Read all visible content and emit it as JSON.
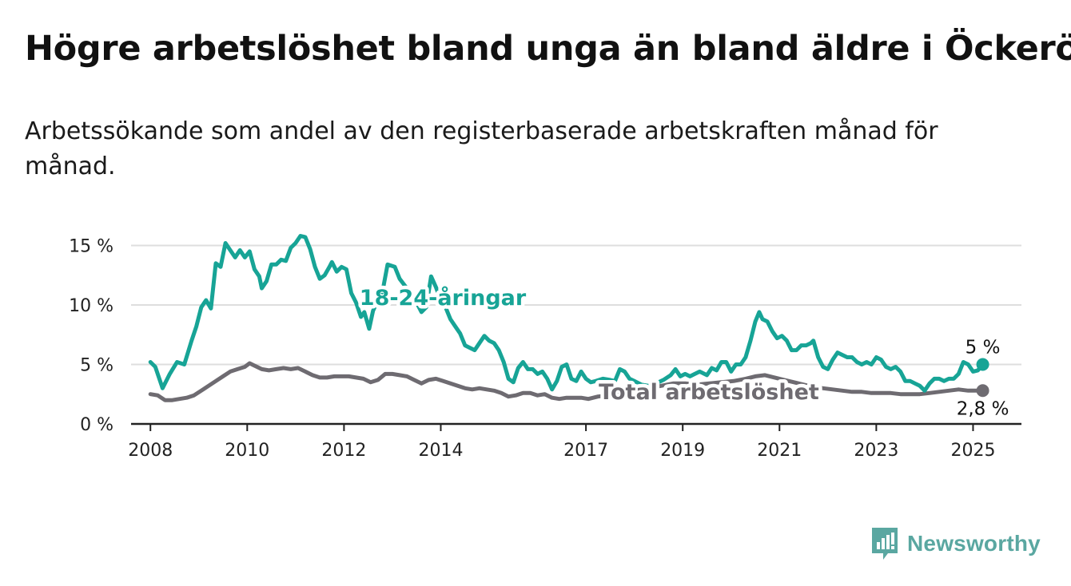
{
  "title": "Högre arbetslöshet bland unga än bland äldre i Öckerö",
  "subtitle": "Arbetssökande som andel av den registerbaserade arbetskraften månad för månad.",
  "brand": {
    "name": "Newsworthy",
    "icon": "newsworthy-logo-icon"
  },
  "colors": {
    "youth": "#17a496",
    "total": "#6e6b71",
    "grid": "#dedede",
    "axis": "#222222",
    "brand": "#5aa7a1"
  },
  "chart_data": {
    "type": "line",
    "xlim": [
      2007.6,
      2026.0
    ],
    "ylim": [
      0,
      15.5
    ],
    "yticks": [
      0,
      5,
      10,
      15
    ],
    "ytick_labels": [
      "0 %",
      "5 %",
      "10 %",
      "15 %"
    ],
    "xticks": [
      2008,
      2010,
      2012,
      2014,
      2017,
      2019,
      2021,
      2023,
      2025
    ],
    "xtick_labels": [
      "2008",
      "2010",
      "2012",
      "2014",
      "2017",
      "2019",
      "2021",
      "2023",
      "2025"
    ],
    "grid": true,
    "series": [
      {
        "name": "18-24-åringar",
        "color": "#17a496",
        "end_label": "5 %",
        "points": [
          [
            2008.0,
            5.2
          ],
          [
            2008.1,
            4.8
          ],
          [
            2008.25,
            3.0
          ],
          [
            2008.4,
            4.2
          ],
          [
            2008.55,
            5.2
          ],
          [
            2008.7,
            5.0
          ],
          [
            2008.85,
            7.0
          ],
          [
            2008.95,
            8.2
          ],
          [
            2009.05,
            9.8
          ],
          [
            2009.15,
            10.4
          ],
          [
            2009.25,
            9.7
          ],
          [
            2009.35,
            13.5
          ],
          [
            2009.45,
            13.2
          ],
          [
            2009.55,
            15.2
          ],
          [
            2009.65,
            14.6
          ],
          [
            2009.75,
            14.0
          ],
          [
            2009.85,
            14.6
          ],
          [
            2009.95,
            14.0
          ],
          [
            2010.05,
            14.5
          ],
          [
            2010.15,
            13.0
          ],
          [
            2010.25,
            12.4
          ],
          [
            2010.3,
            11.4
          ],
          [
            2010.4,
            12.0
          ],
          [
            2010.5,
            13.4
          ],
          [
            2010.6,
            13.4
          ],
          [
            2010.7,
            13.8
          ],
          [
            2010.8,
            13.7
          ],
          [
            2010.9,
            14.8
          ],
          [
            2011.0,
            15.2
          ],
          [
            2011.1,
            15.8
          ],
          [
            2011.2,
            15.7
          ],
          [
            2011.3,
            14.7
          ],
          [
            2011.4,
            13.2
          ],
          [
            2011.5,
            12.2
          ],
          [
            2011.6,
            12.5
          ],
          [
            2011.7,
            13.2
          ],
          [
            2011.75,
            13.6
          ],
          [
            2011.85,
            12.8
          ],
          [
            2011.95,
            13.2
          ],
          [
            2012.05,
            13.0
          ],
          [
            2012.15,
            11.0
          ],
          [
            2012.25,
            10.2
          ],
          [
            2012.35,
            9.0
          ],
          [
            2012.42,
            9.4
          ],
          [
            2012.52,
            8.0
          ],
          [
            2012.6,
            9.5
          ],
          [
            2012.7,
            10.4
          ],
          [
            2012.8,
            11.2
          ],
          [
            2012.9,
            13.4
          ],
          [
            2013.05,
            13.2
          ],
          [
            2013.15,
            12.2
          ],
          [
            2013.3,
            11.4
          ],
          [
            2013.45,
            10.6
          ],
          [
            2013.6,
            9.4
          ],
          [
            2013.7,
            9.8
          ],
          [
            2013.8,
            12.4
          ],
          [
            2013.9,
            11.5
          ],
          [
            2014.0,
            10.4
          ],
          [
            2014.1,
            9.8
          ],
          [
            2014.2,
            8.8
          ],
          [
            2014.3,
            8.2
          ],
          [
            2014.4,
            7.6
          ],
          [
            2014.5,
            6.6
          ],
          [
            2014.6,
            6.4
          ],
          [
            2014.7,
            6.2
          ],
          [
            2014.8,
            6.8
          ],
          [
            2014.9,
            7.4
          ],
          [
            2015.0,
            7.0
          ],
          [
            2015.1,
            6.8
          ],
          [
            2015.2,
            6.2
          ],
          [
            2015.3,
            5.2
          ],
          [
            2015.4,
            3.8
          ],
          [
            2015.5,
            3.5
          ],
          [
            2015.6,
            4.7
          ],
          [
            2015.7,
            5.2
          ],
          [
            2015.8,
            4.6
          ],
          [
            2015.9,
            4.6
          ],
          [
            2016.0,
            4.2
          ],
          [
            2016.1,
            4.4
          ],
          [
            2016.2,
            3.8
          ],
          [
            2016.3,
            2.9
          ],
          [
            2016.4,
            3.6
          ],
          [
            2016.5,
            4.8
          ],
          [
            2016.6,
            5.0
          ],
          [
            2016.7,
            3.8
          ],
          [
            2016.8,
            3.6
          ],
          [
            2016.9,
            4.4
          ],
          [
            2017.0,
            3.8
          ],
          [
            2017.1,
            3.5
          ],
          [
            2017.2,
            3.6
          ],
          [
            2017.35,
            3.8
          ],
          [
            2017.5,
            3.7
          ],
          [
            2017.6,
            3.6
          ],
          [
            2017.7,
            4.6
          ],
          [
            2017.8,
            4.4
          ],
          [
            2017.9,
            3.8
          ],
          [
            2018.0,
            3.6
          ],
          [
            2018.15,
            3.3
          ],
          [
            2018.3,
            3.2
          ],
          [
            2018.45,
            3.4
          ],
          [
            2018.6,
            3.7
          ],
          [
            2018.75,
            4.1
          ],
          [
            2018.85,
            4.6
          ],
          [
            2018.95,
            4.0
          ],
          [
            2019.05,
            4.2
          ],
          [
            2019.15,
            4.0
          ],
          [
            2019.25,
            4.2
          ],
          [
            2019.35,
            4.4
          ],
          [
            2019.5,
            4.1
          ],
          [
            2019.6,
            4.7
          ],
          [
            2019.7,
            4.5
          ],
          [
            2019.8,
            5.2
          ],
          [
            2019.9,
            5.2
          ],
          [
            2020.0,
            4.4
          ],
          [
            2020.1,
            5.0
          ],
          [
            2020.2,
            5.0
          ],
          [
            2020.3,
            5.6
          ],
          [
            2020.4,
            7.0
          ],
          [
            2020.5,
            8.6
          ],
          [
            2020.58,
            9.4
          ],
          [
            2020.65,
            8.8
          ],
          [
            2020.75,
            8.6
          ],
          [
            2020.85,
            7.8
          ],
          [
            2020.95,
            7.2
          ],
          [
            2021.05,
            7.4
          ],
          [
            2021.15,
            7.0
          ],
          [
            2021.25,
            6.2
          ],
          [
            2021.35,
            6.2
          ],
          [
            2021.45,
            6.6
          ],
          [
            2021.55,
            6.6
          ],
          [
            2021.65,
            6.8
          ],
          [
            2021.7,
            7.0
          ],
          [
            2021.8,
            5.6
          ],
          [
            2021.9,
            4.8
          ],
          [
            2022.0,
            4.6
          ],
          [
            2022.1,
            5.4
          ],
          [
            2022.2,
            6.0
          ],
          [
            2022.3,
            5.8
          ],
          [
            2022.4,
            5.6
          ],
          [
            2022.5,
            5.6
          ],
          [
            2022.6,
            5.2
          ],
          [
            2022.7,
            5.0
          ],
          [
            2022.8,
            5.2
          ],
          [
            2022.9,
            5.0
          ],
          [
            2023.0,
            5.6
          ],
          [
            2023.1,
            5.4
          ],
          [
            2023.2,
            4.8
          ],
          [
            2023.3,
            4.6
          ],
          [
            2023.4,
            4.8
          ],
          [
            2023.5,
            4.4
          ],
          [
            2023.6,
            3.6
          ],
          [
            2023.7,
            3.6
          ],
          [
            2023.8,
            3.4
          ],
          [
            2023.9,
            3.2
          ],
          [
            2024.0,
            2.8
          ],
          [
            2024.1,
            3.4
          ],
          [
            2024.2,
            3.8
          ],
          [
            2024.3,
            3.8
          ],
          [
            2024.4,
            3.6
          ],
          [
            2024.5,
            3.8
          ],
          [
            2024.6,
            3.8
          ],
          [
            2024.7,
            4.2
          ],
          [
            2024.8,
            5.2
          ],
          [
            2024.9,
            5.0
          ],
          [
            2025.0,
            4.4
          ],
          [
            2025.1,
            4.5
          ],
          [
            2025.2,
            5.0
          ]
        ]
      },
      {
        "name": "Total arbetslöshet",
        "color": "#6e6b71",
        "end_label": "2,8 %",
        "points": [
          [
            2008.0,
            2.5
          ],
          [
            2008.15,
            2.4
          ],
          [
            2008.3,
            2.0
          ],
          [
            2008.45,
            2.0
          ],
          [
            2008.6,
            2.1
          ],
          [
            2008.75,
            2.2
          ],
          [
            2008.9,
            2.4
          ],
          [
            2009.05,
            2.8
          ],
          [
            2009.2,
            3.2
          ],
          [
            2009.35,
            3.6
          ],
          [
            2009.5,
            4.0
          ],
          [
            2009.65,
            4.4
          ],
          [
            2009.8,
            4.6
          ],
          [
            2009.95,
            4.8
          ],
          [
            2010.05,
            5.1
          ],
          [
            2010.15,
            4.9
          ],
          [
            2010.3,
            4.6
          ],
          [
            2010.45,
            4.5
          ],
          [
            2010.6,
            4.6
          ],
          [
            2010.75,
            4.7
          ],
          [
            2010.9,
            4.6
          ],
          [
            2011.05,
            4.7
          ],
          [
            2011.2,
            4.4
          ],
          [
            2011.35,
            4.1
          ],
          [
            2011.5,
            3.9
          ],
          [
            2011.65,
            3.9
          ],
          [
            2011.8,
            4.0
          ],
          [
            2011.95,
            4.0
          ],
          [
            2012.1,
            4.0
          ],
          [
            2012.25,
            3.9
          ],
          [
            2012.4,
            3.8
          ],
          [
            2012.55,
            3.5
          ],
          [
            2012.7,
            3.7
          ],
          [
            2012.85,
            4.2
          ],
          [
            2013.0,
            4.2
          ],
          [
            2013.15,
            4.1
          ],
          [
            2013.3,
            4.0
          ],
          [
            2013.45,
            3.7
          ],
          [
            2013.6,
            3.4
          ],
          [
            2013.75,
            3.7
          ],
          [
            2013.9,
            3.8
          ],
          [
            2014.05,
            3.6
          ],
          [
            2014.2,
            3.4
          ],
          [
            2014.35,
            3.2
          ],
          [
            2014.5,
            3.0
          ],
          [
            2014.65,
            2.9
          ],
          [
            2014.8,
            3.0
          ],
          [
            2014.95,
            2.9
          ],
          [
            2015.1,
            2.8
          ],
          [
            2015.25,
            2.6
          ],
          [
            2015.4,
            2.3
          ],
          [
            2015.55,
            2.4
          ],
          [
            2015.7,
            2.6
          ],
          [
            2015.85,
            2.6
          ],
          [
            2016.0,
            2.4
          ],
          [
            2016.15,
            2.5
          ],
          [
            2016.3,
            2.2
          ],
          [
            2016.45,
            2.1
          ],
          [
            2016.6,
            2.2
          ],
          [
            2016.75,
            2.2
          ],
          [
            2016.9,
            2.2
          ],
          [
            2017.05,
            2.1
          ],
          [
            2017.25,
            2.3
          ],
          [
            2017.45,
            2.4
          ],
          [
            2017.65,
            2.5
          ],
          [
            2017.85,
            2.6
          ],
          [
            2018.05,
            2.8
          ],
          [
            2018.3,
            3.0
          ],
          [
            2018.55,
            3.2
          ],
          [
            2018.8,
            3.4
          ],
          [
            2019.05,
            3.4
          ],
          [
            2019.3,
            3.3
          ],
          [
            2019.55,
            3.4
          ],
          [
            2019.8,
            3.5
          ],
          [
            2020.05,
            3.6
          ],
          [
            2020.3,
            3.8
          ],
          [
            2020.5,
            4.0
          ],
          [
            2020.7,
            4.1
          ],
          [
            2020.9,
            3.9
          ],
          [
            2021.1,
            3.7
          ],
          [
            2021.3,
            3.5
          ],
          [
            2021.5,
            3.3
          ],
          [
            2021.7,
            3.1
          ],
          [
            2021.9,
            3.0
          ],
          [
            2022.1,
            2.9
          ],
          [
            2022.3,
            2.8
          ],
          [
            2022.5,
            2.7
          ],
          [
            2022.7,
            2.7
          ],
          [
            2022.9,
            2.6
          ],
          [
            2023.1,
            2.6
          ],
          [
            2023.3,
            2.6
          ],
          [
            2023.5,
            2.5
          ],
          [
            2023.7,
            2.5
          ],
          [
            2023.9,
            2.5
          ],
          [
            2024.1,
            2.6
          ],
          [
            2024.3,
            2.7
          ],
          [
            2024.5,
            2.8
          ],
          [
            2024.7,
            2.9
          ],
          [
            2024.9,
            2.8
          ],
          [
            2025.05,
            2.8
          ],
          [
            2025.2,
            2.8
          ]
        ]
      }
    ]
  }
}
